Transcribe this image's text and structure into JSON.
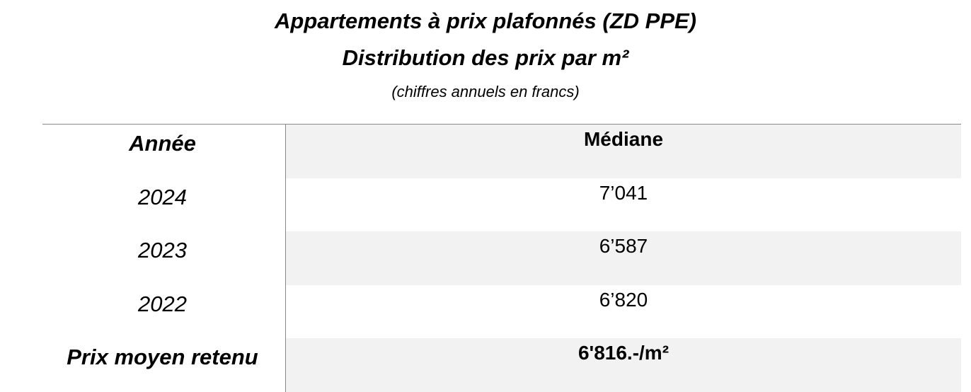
{
  "header": {
    "title": "Appartements à prix plafonnés (ZD PPE)",
    "subtitle": "Distribution des prix par m²",
    "note": "(chiffres annuels en francs)"
  },
  "table": {
    "columns": [
      "Année",
      "Médiane"
    ],
    "rows": [
      [
        "2024",
        "7’041"
      ],
      [
        "2023",
        "6’587"
      ],
      [
        "2022",
        "6’820"
      ],
      [
        "Prix moyen retenu",
        "6'816.-/m²"
      ]
    ]
  }
}
